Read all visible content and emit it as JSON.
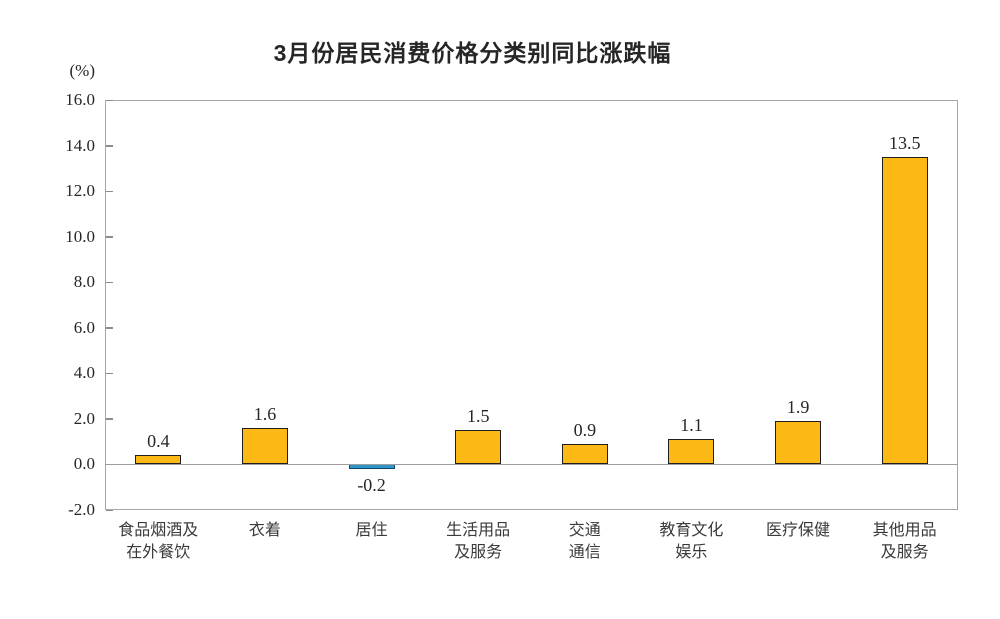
{
  "chart_data": {
    "type": "bar",
    "title": "3月份居民消费价格分类别同比涨跌幅",
    "unit_label": "(%)",
    "xlabel": "",
    "ylabel": "(%)",
    "grid": false,
    "legend_position": "none",
    "ylim": [
      -2.0,
      16.0
    ],
    "yticks": [
      16,
      14,
      12,
      10,
      8,
      6,
      4,
      2,
      0,
      -2
    ],
    "ytick_labels": [
      "16.0",
      "14.0",
      "12.0",
      "10.0",
      "8.0",
      "6.0",
      "4.0",
      "2.0",
      "0.0",
      "-2.0"
    ],
    "categories": [
      "食品烟酒及在外餐饮",
      "衣着",
      "居住",
      "生活用品及服务",
      "交通通信",
      "教育文化娱乐",
      "医疗保健",
      "其他用品及服务"
    ],
    "category_lines": [
      [
        "食品烟酒及",
        "在外餐饮"
      ],
      [
        "衣着"
      ],
      [
        "居住"
      ],
      [
        "生活用品",
        "及服务"
      ],
      [
        "交通",
        "通信"
      ],
      [
        "教育文化",
        "娱乐"
      ],
      [
        "医疗保健"
      ],
      [
        "其他用品",
        "及服务"
      ]
    ],
    "values": [
      0.4,
      1.6,
      -0.2,
      1.5,
      0.9,
      1.1,
      1.9,
      13.5
    ],
    "value_labels": [
      "0.4",
      "1.6",
      "-0.2",
      "1.5",
      "0.9",
      "1.1",
      "1.9",
      "13.5"
    ],
    "colors": {
      "positive_bar": "#FCB814",
      "negative_bar": "#2E96C8",
      "bar_border": "#1f1f1f",
      "negative_bar_border": "#17456b",
      "plot_border": "#a6a6a6",
      "zero_line": "#9e9e9e",
      "text": "#262626"
    }
  }
}
